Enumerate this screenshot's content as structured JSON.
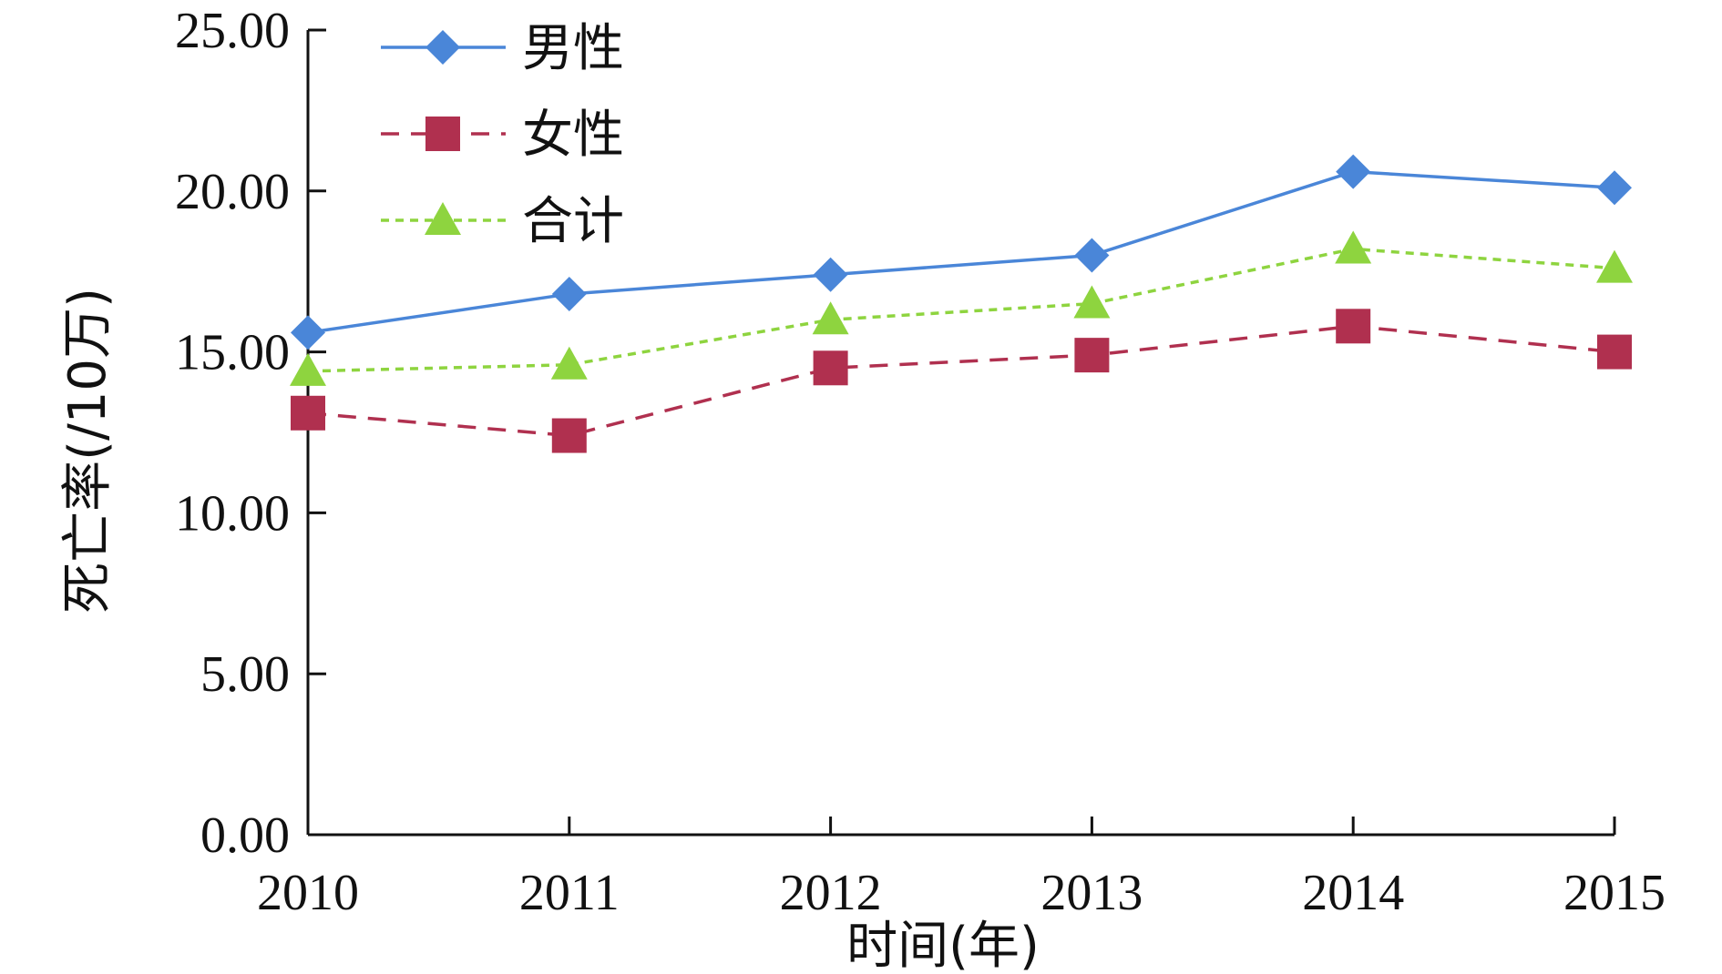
{
  "chart_data": {
    "type": "line",
    "title": "",
    "xlabel": "时间(年)",
    "ylabel": "死亡率(/10万)",
    "categories": [
      "2010",
      "2011",
      "2012",
      "2013",
      "2014",
      "2015"
    ],
    "yticks": [
      "0.00",
      "5.00",
      "10.00",
      "15.00",
      "20.00",
      "25.00"
    ],
    "ylim": [
      0,
      25
    ],
    "grid": false,
    "legend_position": "top-left",
    "series": [
      {
        "name": "男性",
        "values": [
          15.6,
          16.8,
          17.4,
          18.0,
          20.6,
          20.1
        ],
        "color": "#4a86d8",
        "marker": "diamond",
        "line": "solid"
      },
      {
        "name": "女性",
        "values": [
          13.1,
          12.4,
          14.5,
          14.9,
          15.8,
          15.0
        ],
        "color": "#b0304f",
        "marker": "square",
        "line": "dashed"
      },
      {
        "name": "合计",
        "values": [
          14.4,
          14.6,
          16.0,
          16.5,
          18.2,
          17.6
        ],
        "color": "#8ed43f",
        "marker": "triangle",
        "line": "dotted"
      }
    ]
  }
}
